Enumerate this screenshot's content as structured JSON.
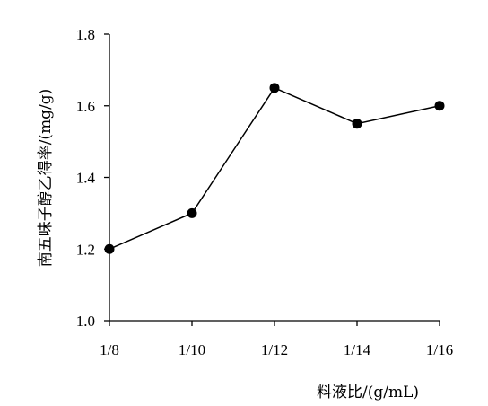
{
  "chart_data": {
    "type": "line",
    "title": "",
    "xlabel": "料液比/(g/mL)",
    "ylabel": "南五味子醇乙得率/(mg/g)",
    "categories": [
      "1/8",
      "1/10",
      "1/12",
      "1/14",
      "1/16"
    ],
    "values": [
      1.2,
      1.3,
      1.65,
      1.55,
      1.6
    ],
    "ylim": [
      1.0,
      1.8
    ],
    "yticks": [
      "1.0",
      "1.2",
      "1.4",
      "1.6",
      "1.8"
    ],
    "grid": false,
    "legend": "none",
    "line_color": "#000000",
    "marker_color": "#000000"
  }
}
